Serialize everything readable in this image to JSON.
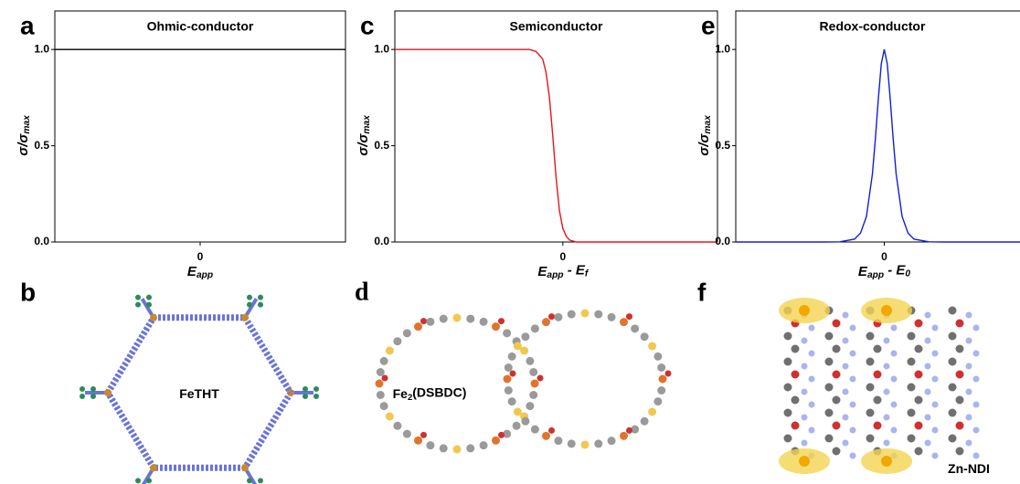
{
  "chart_data": [
    {
      "type": "line",
      "label": "a",
      "title": "Ohmic-conductor",
      "xlabel": [
        {
          "text": "E"
        },
        {
          "sub": "app"
        }
      ],
      "ylabel": [
        {
          "text": "σ/σ"
        },
        {
          "sub": "max"
        }
      ],
      "x": [
        -5,
        5
      ],
      "values": [
        1,
        1
      ],
      "color": "#000000",
      "xlim": [
        -5,
        5
      ],
      "ylim": [
        0,
        1.2
      ],
      "xticks": [
        0
      ],
      "yticks": [
        {
          "value": 0,
          "label": "0.0"
        },
        {
          "value": 0.5,
          "label": "0.5"
        },
        {
          "value": 1,
          "label": "1.0"
        }
      ]
    },
    {
      "type": "line",
      "label": "c",
      "title": "Semiconductor",
      "xlabel": [
        {
          "text": "E"
        },
        {
          "sub": "app"
        },
        {
          "text": " - E"
        },
        {
          "sub": "f"
        }
      ],
      "ylabel": [
        {
          "text": "σ/σ"
        },
        {
          "sub": "max"
        }
      ],
      "x": [
        -5,
        -2,
        -1,
        -0.8,
        -0.6,
        -0.5,
        -0.4,
        -0.3,
        -0.2,
        -0.1,
        0,
        0.1,
        0.2,
        0.4,
        0.6,
        1,
        2,
        4.6
      ],
      "values": [
        1,
        1,
        1,
        0.99,
        0.95,
        0.88,
        0.75,
        0.55,
        0.33,
        0.16,
        0.07,
        0.03,
        0.01,
        0,
        0,
        0,
        0,
        0
      ],
      "color": "#e8141b",
      "xlim": [
        -5,
        4.6
      ],
      "ylim": [
        0,
        1.2
      ],
      "xticks": [
        0
      ],
      "yticks": [
        {
          "value": 0,
          "label": "0.0"
        },
        {
          "value": 0.5,
          "label": "0.5"
        },
        {
          "value": 1,
          "label": "1.0"
        }
      ]
    },
    {
      "type": "line",
      "label": "e",
      "title": "Redox-conductor",
      "xlabel": [
        {
          "text": "E"
        },
        {
          "sub": "app"
        },
        {
          "text": " - E"
        },
        {
          "sub": "0"
        }
      ],
      "ylabel": [
        {
          "text": "σ/σ"
        },
        {
          "sub": "max"
        }
      ],
      "x": [
        -5,
        -2,
        -1.5,
        -1,
        -0.8,
        -0.6,
        -0.4,
        -0.3,
        -0.2,
        -0.1,
        0,
        0.1,
        0.2,
        0.3,
        0.4,
        0.6,
        0.8,
        1,
        1.5,
        2,
        5
      ],
      "values": [
        0,
        0,
        0.001,
        0.015,
        0.046,
        0.133,
        0.353,
        0.535,
        0.744,
        0.926,
        1,
        0.926,
        0.744,
        0.535,
        0.353,
        0.133,
        0.046,
        0.015,
        0.001,
        0,
        0
      ],
      "color": "#1020d8",
      "xlim": [
        -5,
        5
      ],
      "ylim": [
        0,
        1.2
      ],
      "xticks": [
        0
      ],
      "yticks": [
        {
          "value": 0,
          "label": "0.0"
        },
        {
          "value": 0.5,
          "label": "0.5"
        },
        {
          "value": 1,
          "label": "1.0"
        }
      ]
    }
  ],
  "structures": [
    {
      "label": "b",
      "name": [
        {
          "text": "FeTHT"
        }
      ]
    },
    {
      "label": "d",
      "name": [
        {
          "text": "Fe"
        },
        {
          "sub": "2"
        },
        {
          "text": "(DSBDC)"
        }
      ]
    },
    {
      "label": "f",
      "name": [
        {
          "text": "Zn-NDI"
        }
      ]
    }
  ]
}
